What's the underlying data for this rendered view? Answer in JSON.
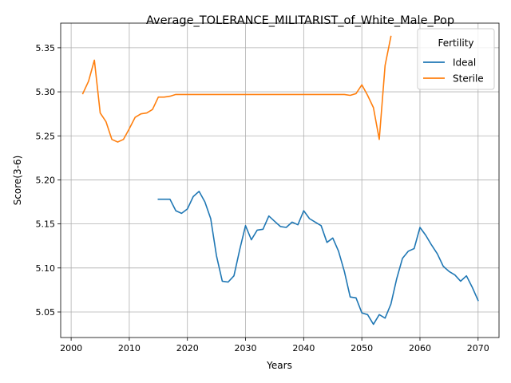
{
  "chart_data": {
    "type": "line",
    "title": "Average_TOLERANCE_MILITARIST_of_White_Male_Pop",
    "xlabel": "Years",
    "ylabel": "Score(3-6)",
    "xlim": [
      1998.2,
      2073.6
    ],
    "ylim": [
      5.021,
      5.378
    ],
    "xticks": [
      2000,
      2010,
      2020,
      2030,
      2040,
      2050,
      2060,
      2070
    ],
    "xtick_labels": [
      "2000",
      "2010",
      "2020",
      "2030",
      "2040",
      "2050",
      "2060",
      "2070"
    ],
    "yticks": [
      5.05,
      5.1,
      5.15,
      5.2,
      5.25,
      5.3,
      5.35
    ],
    "ytick_labels": [
      "5.05",
      "5.10",
      "5.15",
      "5.20",
      "5.25",
      "5.30",
      "5.35"
    ],
    "grid": true,
    "legend": {
      "title": "Fertility",
      "position": "top-right"
    },
    "series": [
      {
        "name": "Ideal",
        "color": "#1f77b4",
        "x": [
          2015,
          2016,
          2017,
          2018,
          2019,
          2020,
          2021,
          2022,
          2023,
          2024,
          2025,
          2026,
          2027,
          2028,
          2029,
          2030,
          2031,
          2032,
          2033,
          2034,
          2035,
          2036,
          2037,
          2038,
          2039,
          2040,
          2041,
          2042,
          2043,
          2044,
          2045,
          2046,
          2047,
          2048,
          2049,
          2050,
          2051,
          2052,
          2053,
          2054,
          2055,
          2056,
          2057,
          2058,
          2059,
          2060,
          2061,
          2062,
          2063,
          2064,
          2065,
          2066,
          2067,
          2068,
          2069,
          2070
        ],
        "y": [
          5.178,
          5.178,
          5.178,
          5.165,
          5.162,
          5.167,
          5.181,
          5.187,
          5.175,
          5.156,
          5.114,
          5.085,
          5.084,
          5.091,
          5.121,
          5.148,
          5.132,
          5.143,
          5.144,
          5.159,
          5.153,
          5.147,
          5.146,
          5.152,
          5.149,
          5.165,
          5.156,
          5.152,
          5.148,
          5.129,
          5.134,
          5.119,
          5.096,
          5.067,
          5.066,
          5.049,
          5.047,
          5.036,
          5.047,
          5.043,
          5.059,
          5.088,
          5.111,
          5.119,
          5.122,
          5.146,
          5.137,
          5.126,
          5.116,
          5.102,
          5.096,
          5.092,
          5.085,
          5.091,
          5.078,
          5.063
        ]
      },
      {
        "name": "Sterile",
        "color": "#ff7f0e",
        "x": [
          2002,
          2003,
          2004,
          2005,
          2006,
          2007,
          2008,
          2009,
          2010,
          2011,
          2012,
          2013,
          2014,
          2015,
          2016,
          2017,
          2018,
          2019,
          2020,
          2021,
          2022,
          2023,
          2024,
          2025,
          2026,
          2027,
          2028,
          2029,
          2030,
          2031,
          2032,
          2033,
          2034,
          2035,
          2036,
          2037,
          2038,
          2039,
          2040,
          2041,
          2042,
          2043,
          2044,
          2045,
          2046,
          2047,
          2048,
          2049,
          2050,
          2051,
          2052,
          2053,
          2054,
          2055
        ],
        "y": [
          5.298,
          5.312,
          5.336,
          5.276,
          5.266,
          5.246,
          5.243,
          5.246,
          5.258,
          5.271,
          5.275,
          5.276,
          5.28,
          5.294,
          5.294,
          5.295,
          5.297,
          5.297,
          5.297,
          5.297,
          5.297,
          5.297,
          5.297,
          5.297,
          5.297,
          5.297,
          5.297,
          5.297,
          5.297,
          5.297,
          5.297,
          5.297,
          5.297,
          5.297,
          5.297,
          5.297,
          5.297,
          5.297,
          5.297,
          5.297,
          5.297,
          5.297,
          5.297,
          5.297,
          5.297,
          5.297,
          5.296,
          5.298,
          5.308,
          5.296,
          5.282,
          5.246,
          5.33,
          5.363
        ]
      }
    ]
  }
}
